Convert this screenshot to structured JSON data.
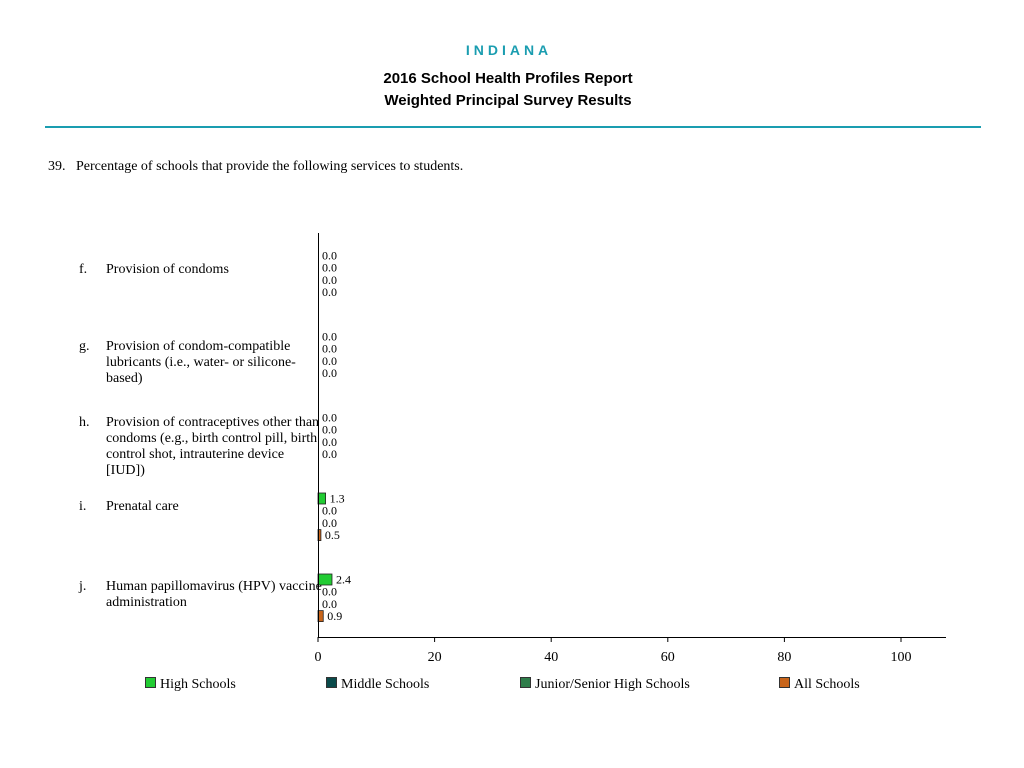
{
  "header": {
    "state": "INDIANA",
    "title_line1": "2016 School Health Profiles Report",
    "title_line2": "Weighted Principal Survey Results"
  },
  "question": {
    "number": "39.",
    "text": "Percentage of schools that provide the following services to students."
  },
  "items": [
    {
      "letter": "f.",
      "label": "Provision of condoms"
    },
    {
      "letter": "g.",
      "label": "Provision of condom-compatible lubricants (i.e., water- or silicone-based)"
    },
    {
      "letter": "h.",
      "label": "Provision of contraceptives other than condoms (e.g., birth control pill, birth control shot, intrauterine device [IUD])"
    },
    {
      "letter": "i.",
      "label": "Prenatal care"
    },
    {
      "letter": "j.",
      "label": "Human papillomavirus (HPV) vaccine administration"
    }
  ],
  "chart_data": {
    "type": "bar",
    "orientation": "horizontal",
    "categories": [
      "f.",
      "g.",
      "h.",
      "i.",
      "j."
    ],
    "series": [
      {
        "name": "High Schools",
        "color": "#22cc33",
        "values": [
          0.0,
          0.0,
          0.0,
          1.3,
          2.4
        ],
        "labels": [
          "0.0",
          "0.0",
          "0.0",
          "1.3",
          "2.4"
        ]
      },
      {
        "name": "Middle Schools",
        "color": "#0a4a4a",
        "values": [
          0.0,
          0.0,
          0.0,
          0.0,
          0.0
        ],
        "labels": [
          "0.0",
          "0.0",
          "0.0",
          "0.0",
          "0.0"
        ]
      },
      {
        "name": "Junior/Senior High Schools",
        "color": "#2e7d4a",
        "values": [
          0.0,
          0.0,
          0.0,
          0.0,
          0.0
        ],
        "labels": [
          "0.0",
          "0.0",
          "0.0",
          "0.0",
          "0.0"
        ]
      },
      {
        "name": "All Schools",
        "color": "#c8651b",
        "values": [
          0.0,
          0.0,
          0.0,
          0.5,
          0.9
        ],
        "labels": [
          "0.0",
          "0.0",
          "0.0",
          "0.5",
          "0.9"
        ]
      }
    ],
    "x_ticks": [
      "0",
      "20",
      "40",
      "60",
      "80",
      "100"
    ],
    "xlim": [
      0,
      108
    ],
    "legend_position": "bottom",
    "grid": false
  }
}
